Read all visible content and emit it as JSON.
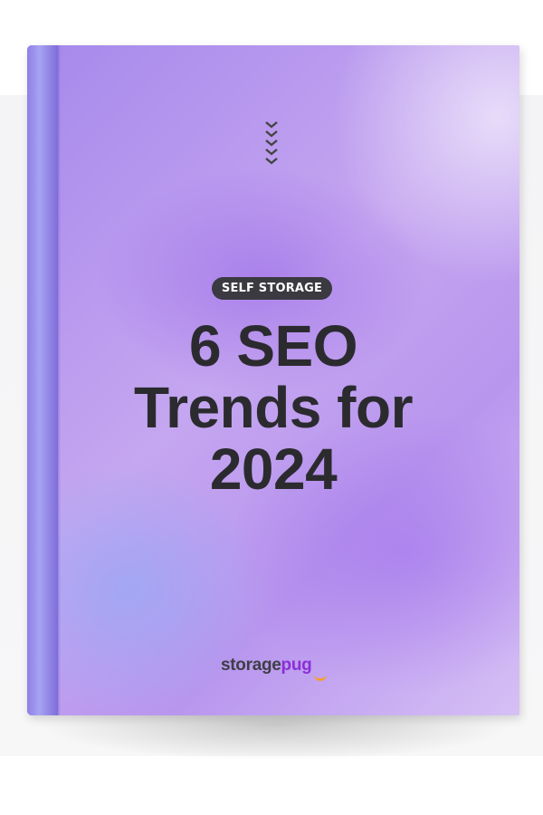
{
  "cover": {
    "badge": "SELF STORAGE",
    "title_lines": [
      "6 SEO",
      "Trends for",
      "2024"
    ],
    "brand": {
      "part1": "storage",
      "part2": "pug"
    },
    "decor_icon": "chevrons-down-icon",
    "colors": {
      "badge_bg": "#3a3a40",
      "title": "#2b2b2f",
      "brand_accent": "#8a2fd6",
      "logo_smile": "#f0a030"
    }
  }
}
